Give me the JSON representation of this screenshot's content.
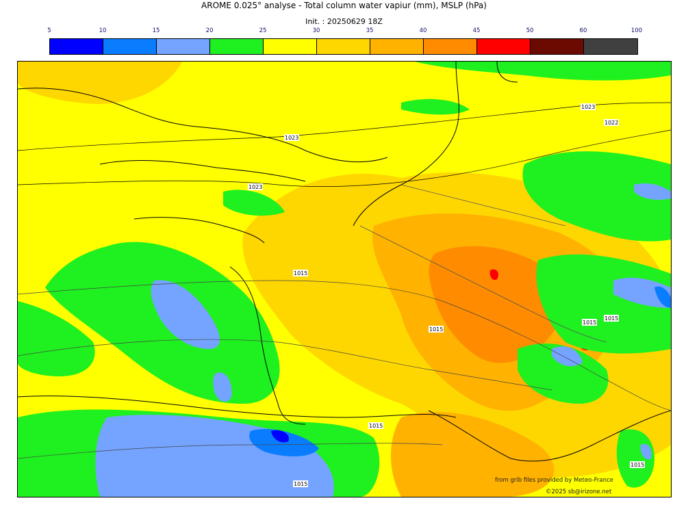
{
  "header": {
    "title": "AROME 0.025° analyse - Total column water vapiur (mm), MSLP (hPa)",
    "subtitle": "Init. : 20250629 18Z"
  },
  "legend": {
    "ticks": [
      "5",
      "10",
      "15",
      "20",
      "25",
      "30",
      "35",
      "40",
      "45",
      "50",
      "60",
      "100"
    ],
    "colors": [
      "#0000ff",
      "#0a7dff",
      "#74a4ff",
      "#1ff01f",
      "#ffff00",
      "#ffd700",
      "#ffb200",
      "#ff8c00",
      "#ff0000",
      "#6a0a00",
      "#404040"
    ]
  },
  "map": {
    "pressure_labels": [
      "1023",
      "1023",
      "1023",
      "1022",
      "1015",
      "1015",
      "1015",
      "1015",
      "1015",
      "1015",
      "1015"
    ]
  },
  "footer": {
    "source": "from grib files provided by Meteo-France",
    "copyright": "©2025 sb@irizone.net"
  }
}
